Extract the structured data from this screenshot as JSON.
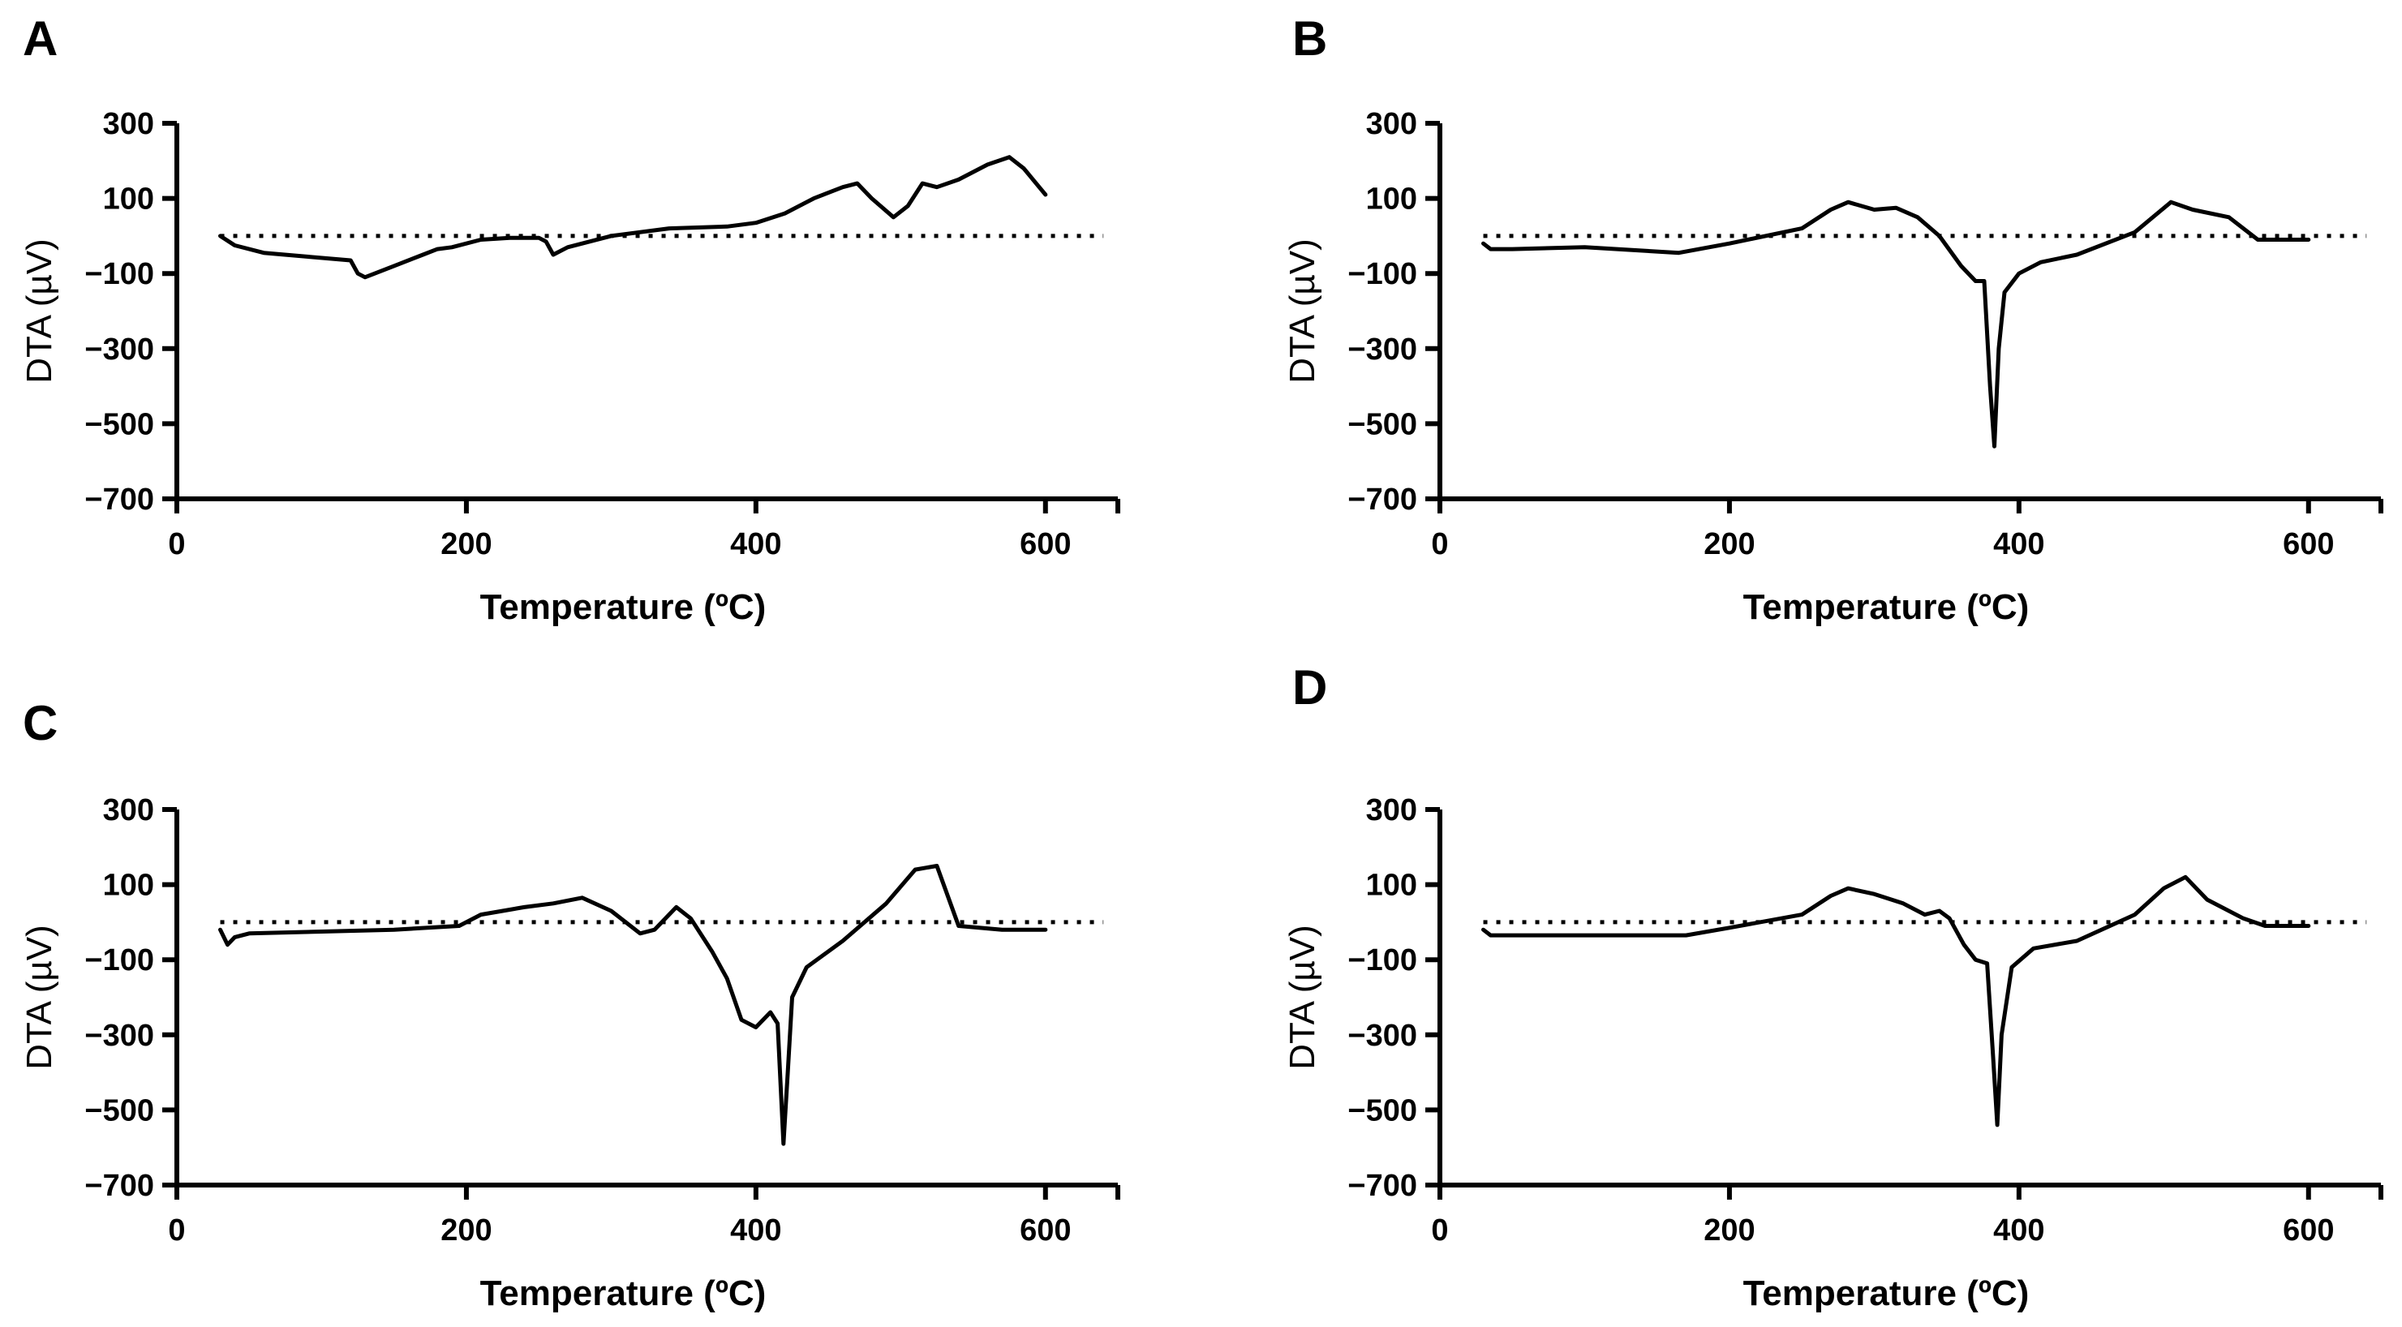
{
  "chart_data": [
    {
      "type": "line",
      "panel_label": "A",
      "xlabel": "Temperature (ºC)",
      "ylabel": "DTA (µV)",
      "xlim": [
        0,
        650
      ],
      "ylim": [
        -700,
        300
      ],
      "xticks": [
        0,
        200,
        400,
        600
      ],
      "yticks": [
        300,
        100,
        -100,
        -300,
        -500,
        -700
      ],
      "xtick_labels": [
        "0",
        "200",
        "400",
        "600"
      ],
      "ytick_labels": [
        "300",
        "100",
        "−100",
        "−300",
        "−500",
        "−700"
      ],
      "reference_line_y": 0,
      "series": [
        {
          "name": "A",
          "x": [
            30,
            40,
            60,
            90,
            120,
            125,
            130,
            150,
            170,
            180,
            190,
            210,
            230,
            250,
            255,
            260,
            270,
            300,
            340,
            380,
            400,
            420,
            440,
            460,
            470,
            480,
            495,
            505,
            515,
            525,
            540,
            560,
            575,
            585,
            600
          ],
          "y": [
            0,
            -25,
            -45,
            -55,
            -65,
            -100,
            -110,
            -80,
            -50,
            -35,
            -30,
            -10,
            -5,
            -5,
            -15,
            -50,
            -30,
            0,
            20,
            25,
            35,
            60,
            100,
            130,
            140,
            100,
            50,
            80,
            140,
            130,
            150,
            190,
            210,
            180,
            110
          ]
        }
      ]
    },
    {
      "type": "line",
      "panel_label": "B",
      "xlabel": "Temperature (ºC)",
      "ylabel": "DTA (µV)",
      "xlim": [
        0,
        650
      ],
      "ylim": [
        -700,
        300
      ],
      "xticks": [
        0,
        200,
        400,
        600
      ],
      "yticks": [
        300,
        100,
        -100,
        -300,
        -500,
        -700
      ],
      "xtick_labels": [
        "0",
        "200",
        "400",
        "600"
      ],
      "ytick_labels": [
        "300",
        "100",
        "−100",
        "−300",
        "−500",
        "−700"
      ],
      "reference_line_y": 0,
      "series": [
        {
          "name": "B",
          "x": [
            30,
            35,
            50,
            100,
            165,
            200,
            250,
            270,
            282,
            300,
            315,
            330,
            345,
            360,
            370,
            376,
            380,
            383,
            386,
            390,
            400,
            415,
            440,
            480,
            505,
            520,
            545,
            565,
            600
          ],
          "y": [
            -20,
            -35,
            -35,
            -30,
            -45,
            -20,
            20,
            70,
            90,
            70,
            75,
            50,
            0,
            -80,
            -120,
            -120,
            -400,
            -560,
            -300,
            -150,
            -100,
            -70,
            -50,
            10,
            90,
            70,
            50,
            -10,
            -10
          ]
        }
      ]
    },
    {
      "type": "line",
      "panel_label": "C",
      "xlabel": "Temperature (ºC)",
      "ylabel": "DTA (µV)",
      "xlim": [
        0,
        650
      ],
      "ylim": [
        -700,
        300
      ],
      "xticks": [
        0,
        200,
        400,
        600
      ],
      "yticks": [
        300,
        100,
        -100,
        -300,
        -500,
        -700
      ],
      "xtick_labels": [
        "0",
        "200",
        "400",
        "600"
      ],
      "ytick_labels": [
        "300",
        "100",
        "−100",
        "−300",
        "−500",
        "−700"
      ],
      "reference_line_y": 0,
      "series": [
        {
          "name": "C",
          "x": [
            30,
            35,
            40,
            50,
            100,
            150,
            195,
            210,
            240,
            260,
            280,
            300,
            320,
            330,
            345,
            355,
            370,
            380,
            390,
            400,
            410,
            415,
            419,
            422,
            425,
            435,
            460,
            490,
            510,
            525,
            540,
            570,
            600
          ],
          "y": [
            -20,
            -60,
            -40,
            -30,
            -25,
            -20,
            -10,
            20,
            40,
            50,
            65,
            30,
            -30,
            -20,
            40,
            10,
            -80,
            -150,
            -260,
            -280,
            -240,
            -270,
            -590,
            -400,
            -200,
            -120,
            -50,
            50,
            140,
            150,
            -10,
            -20,
            -20
          ]
        }
      ]
    },
    {
      "type": "line",
      "panel_label": "D",
      "xlabel": "Temperature (ºC)",
      "ylabel": "DTA (µV)",
      "xlim": [
        0,
        650
      ],
      "ylim": [
        -700,
        300
      ],
      "xticks": [
        0,
        200,
        400,
        600
      ],
      "yticks": [
        300,
        100,
        -100,
        -300,
        -500,
        -700
      ],
      "xtick_labels": [
        "0",
        "200",
        "400",
        "600"
      ],
      "ytick_labels": [
        "300",
        "100",
        "−100",
        "−300",
        "−500",
        "−700"
      ],
      "reference_line_y": 0,
      "series": [
        {
          "name": "D",
          "x": [
            30,
            35,
            50,
            100,
            170,
            200,
            250,
            270,
            282,
            300,
            320,
            335,
            345,
            352,
            362,
            370,
            378,
            382,
            385,
            388,
            395,
            410,
            440,
            480,
            500,
            515,
            530,
            555,
            570,
            600
          ],
          "y": [
            -20,
            -35,
            -35,
            -35,
            -35,
            -15,
            20,
            70,
            90,
            75,
            50,
            20,
            30,
            10,
            -60,
            -100,
            -110,
            -350,
            -540,
            -300,
            -120,
            -70,
            -50,
            20,
            90,
            120,
            60,
            10,
            -10,
            -10
          ]
        }
      ]
    }
  ]
}
